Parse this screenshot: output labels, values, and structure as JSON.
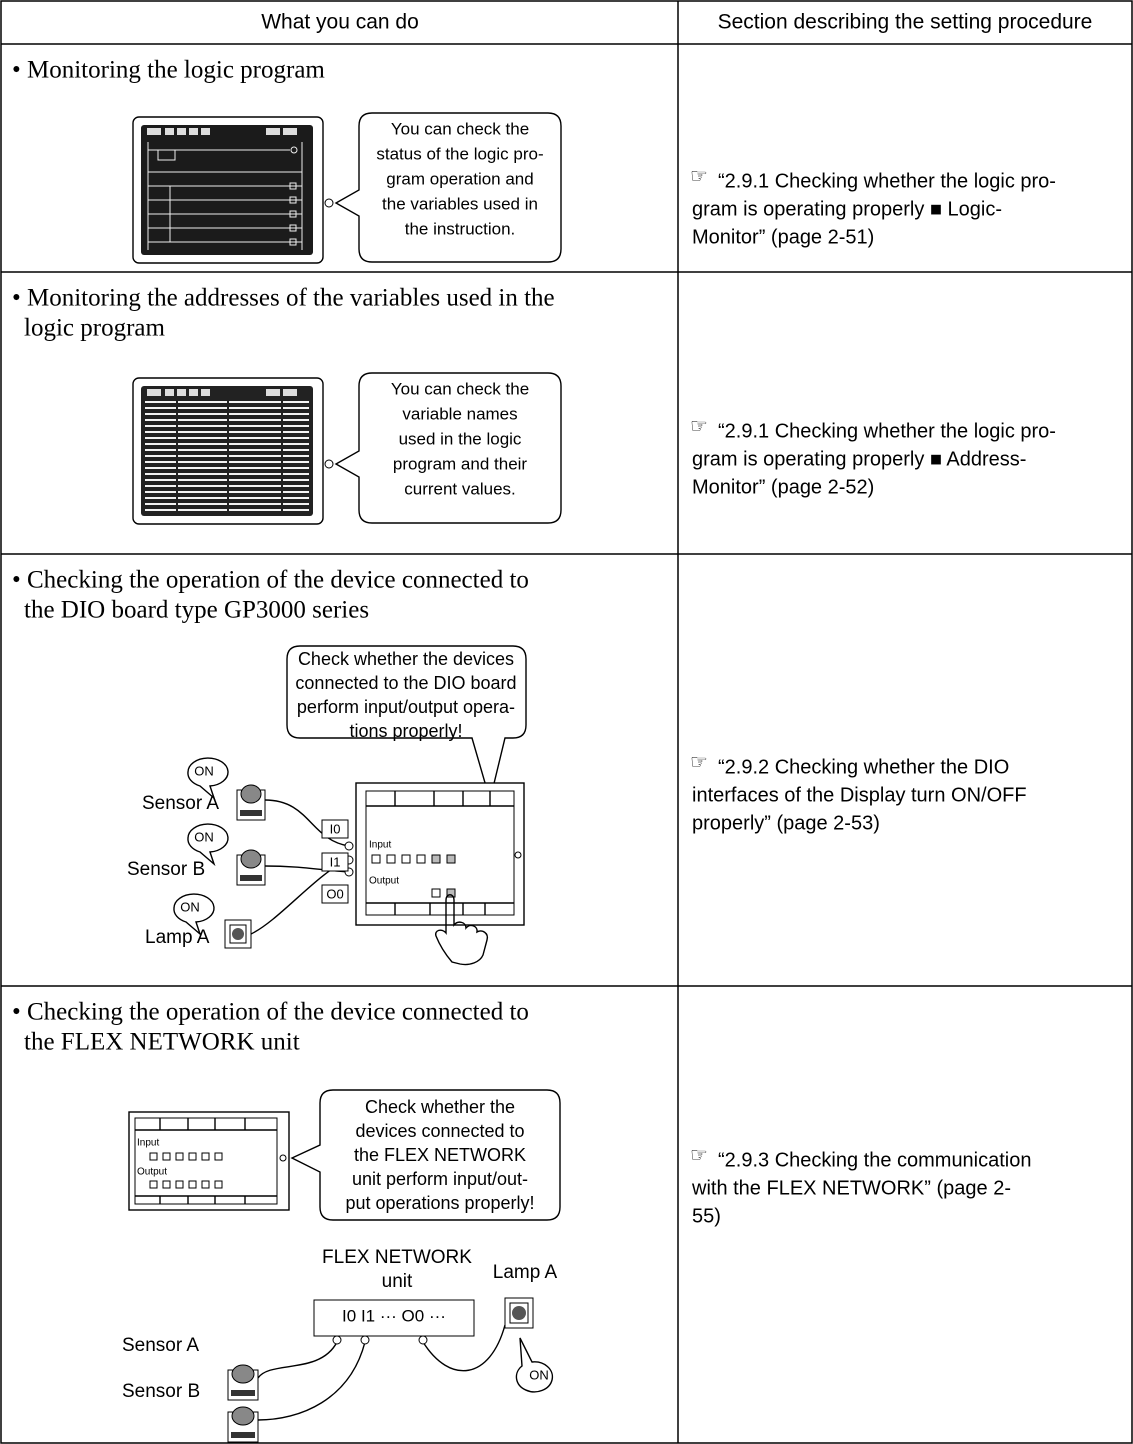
{
  "table": {
    "header": [
      "What you can do",
      "Section describing the setting procedure"
    ],
    "rows": [
      {
        "title": [
          "• Monitoring the logic program"
        ],
        "callout": [
          "You can check the",
          "status of the logic pro-",
          "gram operation and",
          "the variables used in",
          "the instruction."
        ],
        "icon": "☞",
        "reference": [
          "“2.9.1 Checking whether the logic pro-",
          "gram is operating properly  ■ Logic-",
          "Monitor” (page 2-51)"
        ]
      },
      {
        "title": [
          "• Monitoring the addresses of the variables used in the",
          "logic program"
        ],
        "callout": [
          "You can check the",
          "variable names",
          "used in the logic",
          "program and their",
          "current values."
        ],
        "icon": "☞",
        "reference": [
          "“2.9.1 Checking whether the logic pro-",
          "gram is operating properly  ■ Address-",
          "Monitor” (page 2-52)"
        ]
      },
      {
        "title": [
          "• Checking the operation of the device connected to",
          "the DIO board type GP3000 series"
        ],
        "callout": [
          "Check whether the devices",
          "connected to the DIO board",
          "perform input/output opera-",
          "tions properly!"
        ],
        "labels": [
          "Sensor A",
          "Sensor B",
          "Lamp A",
          "ON",
          "ON",
          "ON",
          "I0",
          "I1",
          "O0",
          "Input",
          "Output"
        ],
        "icon": "☞",
        "reference": [
          "“2.9.2 Checking whether the DIO",
          "interfaces of the Display turn ON/OFF",
          "properly” (page 2-53)"
        ]
      },
      {
        "title": [
          "• Checking the operation of the device connected to",
          "the FLEX NETWORK unit"
        ],
        "callout": [
          "Check whether the",
          "devices connected to",
          "the FLEX NETWORK",
          "unit perform input/out-",
          "put operations properly!"
        ],
        "labels": [
          "Input",
          "Output",
          "FLEX NETWORK",
          "unit",
          "Lamp A",
          "I0   I1  ···  O0  ···",
          "ON",
          "Sensor A",
          "Sensor B"
        ],
        "icon": "☞",
        "reference": [
          "“2.9.3 Checking the communication",
          "with the FLEX NETWORK” (page 2-",
          "55)"
        ]
      }
    ]
  }
}
